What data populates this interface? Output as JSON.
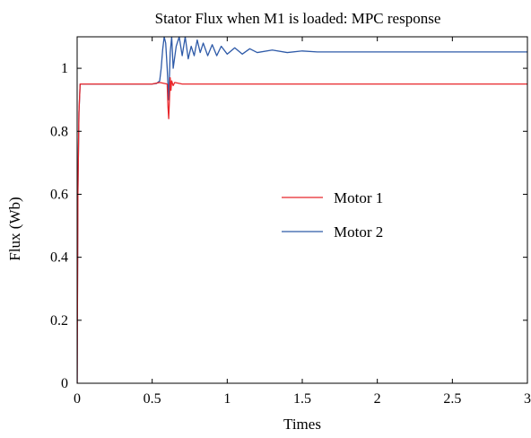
{
  "chart_data": {
    "type": "line",
    "title": "Stator Flux when M1 is loaded: MPC response",
    "xlabel": "Times",
    "ylabel": "Flux (Wb)",
    "xlim": [
      0,
      3
    ],
    "ylim": [
      0,
      1.1
    ],
    "xticks": [
      0,
      0.5,
      1,
      1.5,
      2,
      2.5,
      3
    ],
    "xtick_labels": [
      "0",
      "0.5",
      "1",
      "1.5",
      "2",
      "2.5",
      "3"
    ],
    "yticks": [
      0,
      0.2,
      0.4,
      0.6,
      0.8,
      1
    ],
    "ytick_labels": [
      "0",
      "0.2",
      "0.4",
      "0.6",
      "0.8",
      "1"
    ],
    "grid": false,
    "legend_position": "center-right",
    "series": [
      {
        "name": "Motor 1",
        "color": "#e8262b",
        "x": [
          0,
          0.005,
          0.012,
          0.02,
          0.03,
          0.5,
          0.55,
          0.6,
          0.605,
          0.61,
          0.615,
          0.62,
          0.625,
          0.63,
          0.64,
          0.65,
          0.7,
          1.0,
          1.5,
          2.0,
          2.5,
          3.0
        ],
        "y": [
          0,
          0.6,
          0.86,
          0.95,
          0.95,
          0.95,
          0.955,
          0.95,
          0.88,
          0.84,
          0.9,
          0.97,
          0.93,
          0.96,
          0.945,
          0.955,
          0.95,
          0.95,
          0.95,
          0.95,
          0.95,
          0.95
        ]
      },
      {
        "name": "Motor 2",
        "color": "#2e5aa8",
        "x": [
          0,
          0.005,
          0.012,
          0.02,
          0.03,
          0.5,
          0.53,
          0.55,
          0.56,
          0.57,
          0.58,
          0.59,
          0.6,
          0.61,
          0.62,
          0.63,
          0.64,
          0.66,
          0.68,
          0.7,
          0.72,
          0.74,
          0.76,
          0.78,
          0.8,
          0.82,
          0.84,
          0.87,
          0.9,
          0.93,
          0.96,
          1.0,
          1.05,
          1.1,
          1.15,
          1.2,
          1.3,
          1.4,
          1.5,
          1.6,
          1.8,
          2.0,
          2.5,
          3.0
        ],
        "y": [
          0,
          0.6,
          0.86,
          0.95,
          0.95,
          0.95,
          0.952,
          0.96,
          1.0,
          1.06,
          1.1,
          1.08,
          1.0,
          0.9,
          1.05,
          1.1,
          1.0,
          1.07,
          1.1,
          1.04,
          1.1,
          1.03,
          1.07,
          1.04,
          1.09,
          1.05,
          1.08,
          1.04,
          1.075,
          1.04,
          1.07,
          1.045,
          1.065,
          1.045,
          1.062,
          1.05,
          1.058,
          1.05,
          1.055,
          1.052,
          1.052,
          1.052,
          1.052,
          1.052
        ]
      }
    ]
  }
}
